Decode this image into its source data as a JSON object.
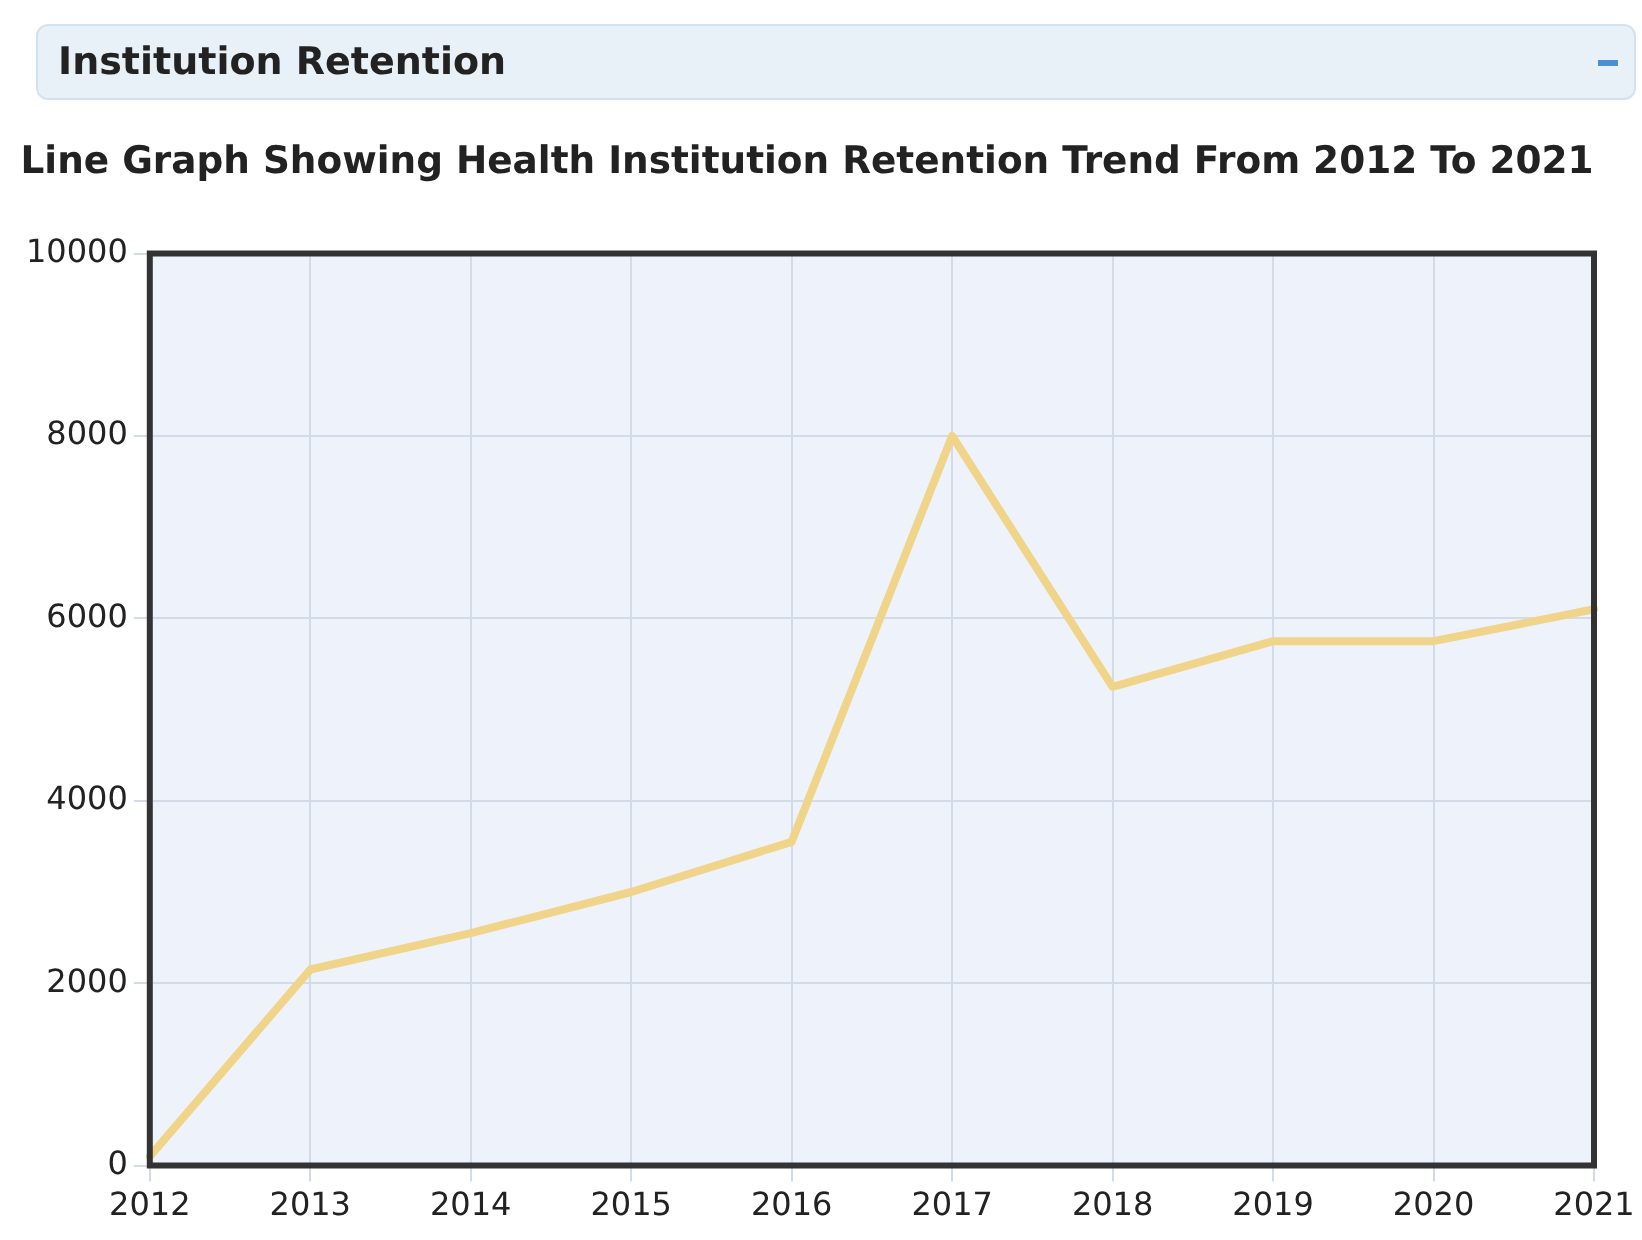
{
  "chart_data": {
    "type": "line",
    "title": "Line Graph Showing Health Institution Retention Trend From 2012 To 2021",
    "annotations": [
      "Institution Retention"
    ],
    "categories": [
      "2012",
      "2013",
      "2014",
      "2015",
      "2016",
      "2017",
      "2018",
      "2019",
      "2020",
      "2021"
    ],
    "series": [
      {
        "color": "#f0d48a",
        "values": [
          100,
          2150,
          2550,
          3000,
          3550,
          8000,
          5250,
          5750,
          5750,
          6100
        ]
      }
    ],
    "ylim": [
      0,
      10000
    ],
    "yticks": [
      0,
      2000,
      4000,
      6000,
      8000,
      10000
    ],
    "grid": true,
    "legend": false,
    "marker": "none"
  }
}
